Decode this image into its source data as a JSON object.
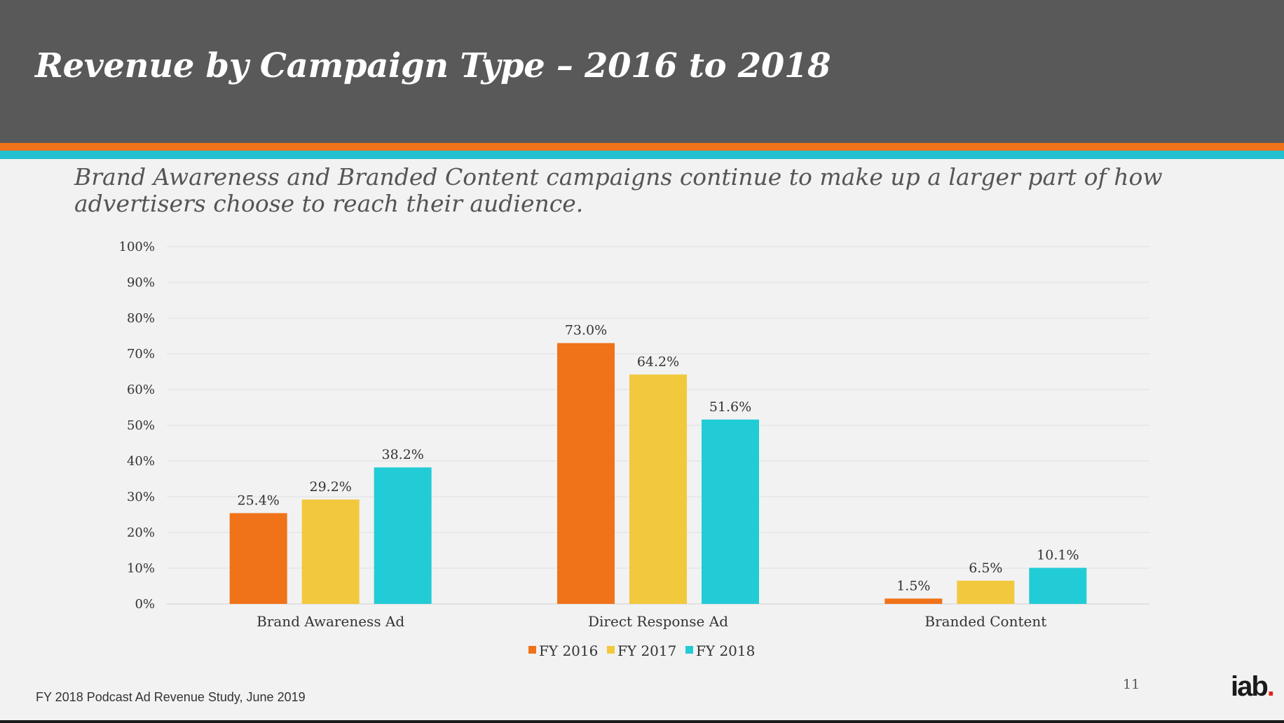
{
  "slide": {
    "title": "Revenue by Campaign Type – 2016 to 2018",
    "subtitle": "Brand Awareness and Branded Content campaigns continue to make up a larger part of how advertisers choose to reach their audience.",
    "footer": "FY 2018 Podcast Ad Revenue Study, June 2019",
    "page_number": "11",
    "logo_text": "iab",
    "logo_dot": "."
  },
  "colors": {
    "header_bg": "#595959",
    "accent_orange": "#f07219",
    "accent_teal": "#22c0cf",
    "series": [
      "#f07219",
      "#f2c83d",
      "#22ccd6"
    ]
  },
  "chart_data": {
    "type": "bar",
    "title": "",
    "xlabel": "",
    "ylabel": "",
    "categories": [
      "Brand Awareness Ad",
      "Direct Response Ad",
      "Branded Content"
    ],
    "series": [
      {
        "name": "FY 2016",
        "values": [
          25.4,
          73.0,
          1.5
        ],
        "labels": [
          "25.4%",
          "73.0%",
          "1.5%"
        ]
      },
      {
        "name": "FY 2017",
        "values": [
          29.2,
          64.2,
          6.5
        ],
        "labels": [
          "29.2%",
          "64.2%",
          "6.5%"
        ]
      },
      {
        "name": "FY 2018",
        "values": [
          38.2,
          51.6,
          10.1
        ],
        "labels": [
          "38.2%",
          "51.6%",
          "10.1%"
        ]
      }
    ],
    "ylim": [
      0,
      100
    ],
    "yticks": [
      "0%",
      "10%",
      "20%",
      "30%",
      "40%",
      "50%",
      "60%",
      "70%",
      "80%",
      "90%",
      "100%"
    ],
    "grid": true,
    "legend_position": "bottom"
  }
}
